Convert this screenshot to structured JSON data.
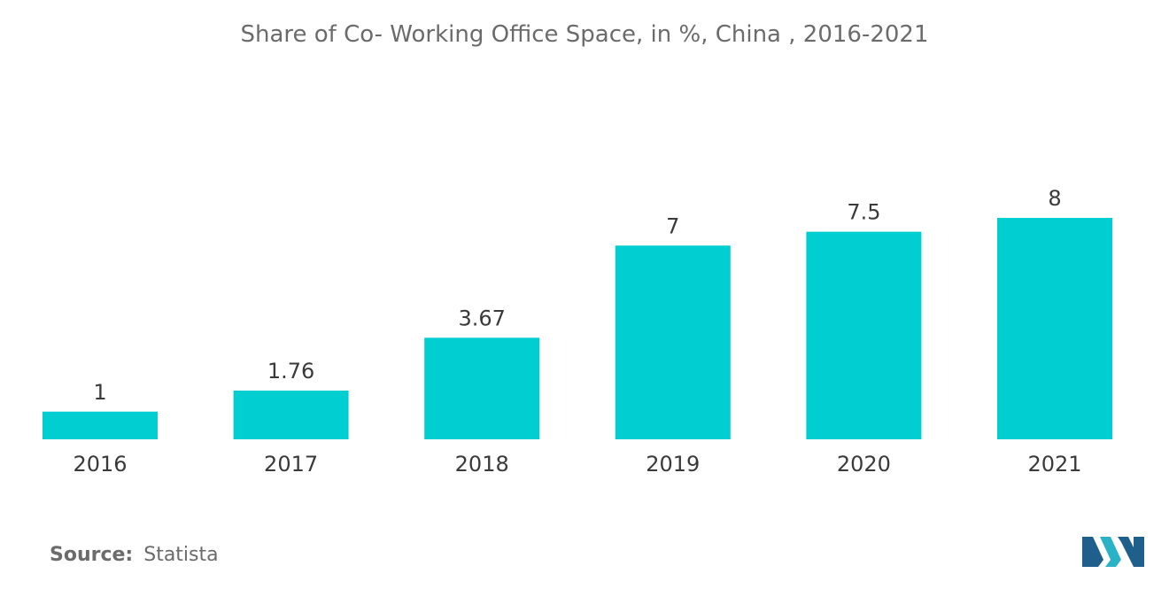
{
  "chart_data": {
    "type": "bar",
    "title": "Share of Co- Working Office Space, in %, China , 2016-2021",
    "categories": [
      "2016",
      "2017",
      "2018",
      "2019",
      "2020",
      "2021"
    ],
    "values": [
      1,
      1.76,
      3.67,
      7,
      7.5,
      8
    ],
    "value_labels": [
      "1",
      "1.76",
      "3.67",
      "7",
      "7.5",
      "8"
    ],
    "xlabel": "",
    "ylabel": "",
    "ylim": [
      0,
      8
    ],
    "grid": false,
    "legend": "none",
    "bar_color": "#00ced1"
  },
  "source": {
    "label": "Source:",
    "value": "Statista"
  },
  "logo": {
    "icon": "mordor-intelligence-logo-icon",
    "colors": [
      "#1f5f8b",
      "#2ab3c6"
    ]
  }
}
